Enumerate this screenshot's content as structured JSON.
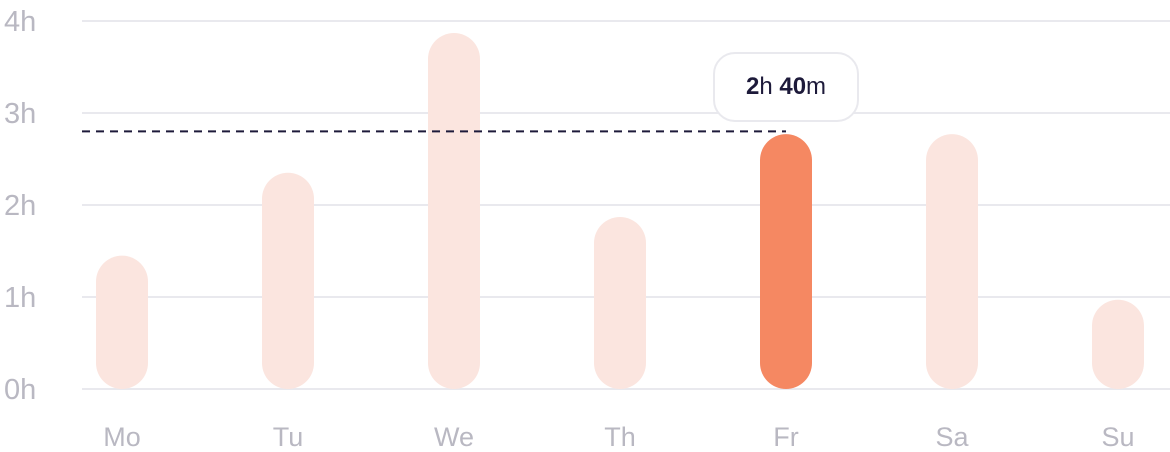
{
  "chart_data": {
    "type": "bar",
    "categories": [
      "Mo",
      "Tu",
      "We",
      "Th",
      "Fr",
      "Sa",
      "Su"
    ],
    "values": [
      1.45,
      2.35,
      3.87,
      1.87,
      2.77,
      2.77,
      0.97
    ],
    "highlighted_category": "Fr",
    "y_ticks": [
      "0h",
      "1h",
      "2h",
      "3h",
      "4h"
    ],
    "ylim": [
      0,
      4
    ],
    "grid": true,
    "reference_line": {
      "value": 2.8,
      "style": "dashed"
    },
    "tooltip": {
      "category": "Fr",
      "hours_number": "2",
      "hours_unit": "h",
      "minutes_number": "40",
      "minutes_unit": "m"
    },
    "colors": {
      "bar": "#fbe5df",
      "bar_highlight": "#f58862",
      "grid": "#e9e9ee",
      "tick_label": "#b9b8c2",
      "reference_line": "#1d1a3a"
    }
  }
}
